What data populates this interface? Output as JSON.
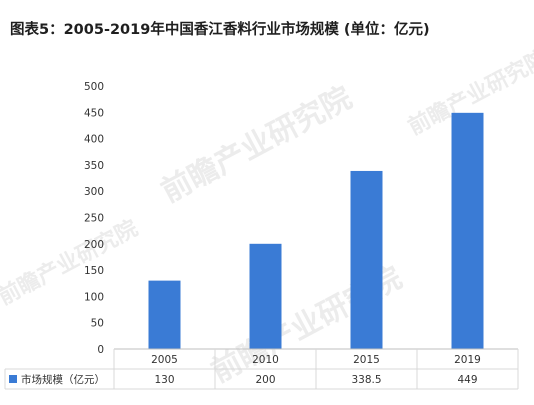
{
  "page_title": "图表5：2005-2019年中国香江香料行业市场规模 (单位：亿元)",
  "watermark_text": "前瞻产业研究院",
  "colors": {
    "bar": "#3a7bd5",
    "axis": "#bfbfbf",
    "grid": "#d9d9d9",
    "text": "#333333"
  },
  "chart_data": {
    "type": "bar",
    "title": "图表5：2005-2019年中国香江香料行业市场规模 (单位：亿元)",
    "categories": [
      "2005",
      "2010",
      "2015",
      "2019"
    ],
    "series": [
      {
        "name": "市场规模（亿元）",
        "values": [
          130,
          200,
          338.5,
          449
        ]
      }
    ],
    "table_values": [
      "130",
      "200",
      "338.5",
      "449"
    ],
    "y_ticks": [
      "0",
      "50",
      "100",
      "150",
      "200",
      "250",
      "300",
      "350",
      "400",
      "450",
      "500"
    ],
    "ylim": [
      0,
      500
    ],
    "xlabel": "",
    "ylabel": "",
    "grid": false,
    "legend": "data-table-left"
  }
}
